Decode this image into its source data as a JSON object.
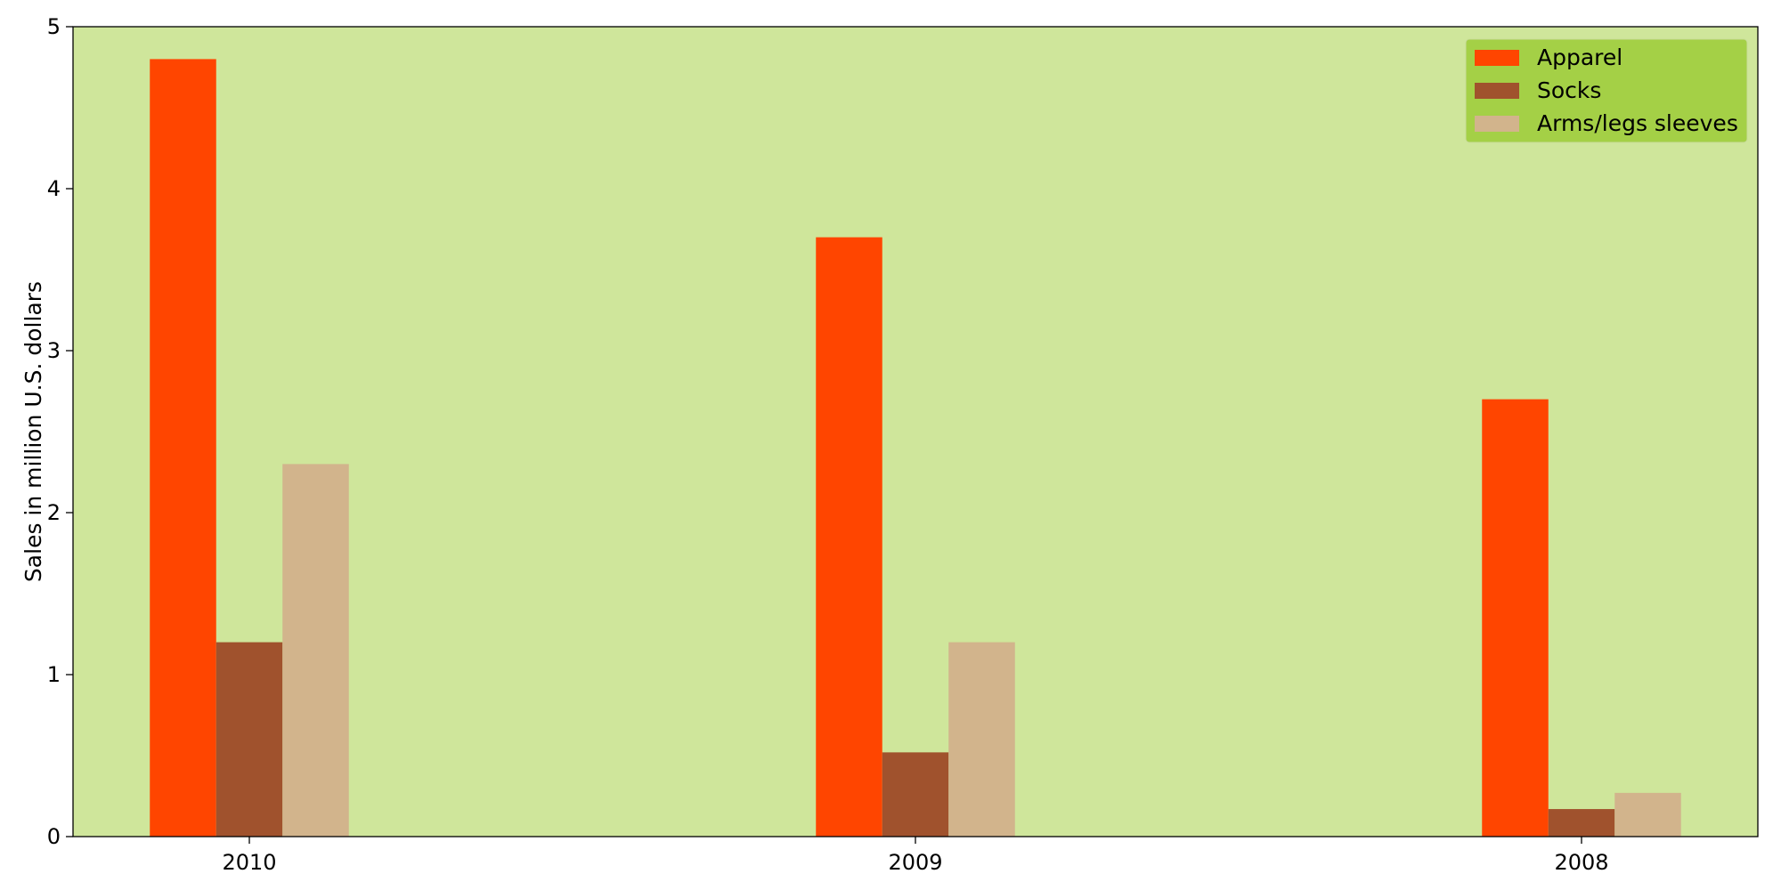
{
  "chart_data": {
    "type": "bar",
    "title": "",
    "xlabel": "",
    "ylabel": "Sales in million U.S. dollars",
    "categories": [
      "2010",
      "2009",
      "2008"
    ],
    "series": [
      {
        "name": "Apparel",
        "values": [
          4.8,
          3.7,
          2.7
        ],
        "color": "#ff4500"
      },
      {
        "name": "Socks",
        "values": [
          1.2,
          0.52,
          0.17
        ],
        "color": "#a0522d"
      },
      {
        "name": "Arms/legs sleeves",
        "values": [
          2.3,
          1.2,
          0.27
        ],
        "color": "#d2b48c"
      }
    ],
    "ylim": [
      0,
      5
    ],
    "yticks": [
      0,
      1,
      2,
      3,
      4,
      5
    ],
    "grid": false,
    "legend_position": "top-right",
    "plot_background": "#cfe69b",
    "legend_background": "#a4d046"
  }
}
